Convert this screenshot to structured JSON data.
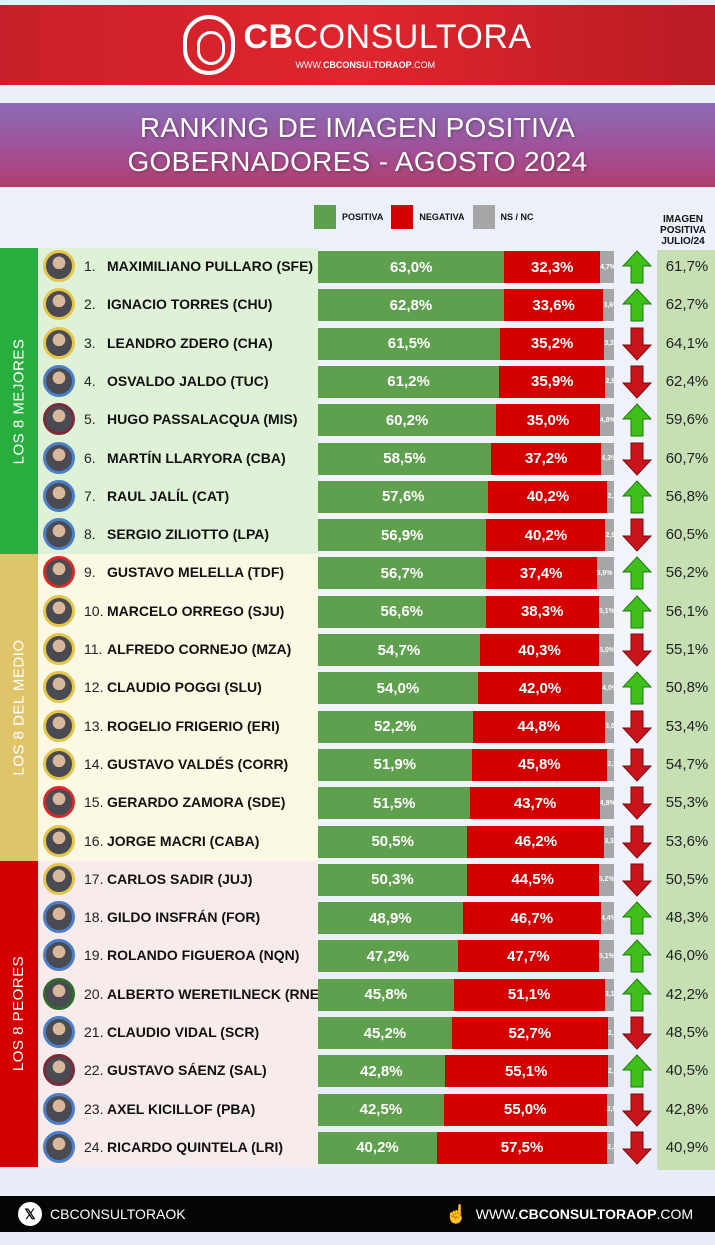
{
  "header": {
    "brand_bold": "CB",
    "brand_light": "CONSULTORA",
    "url_prefix": "WWW.",
    "url_bold": "CBCONSULTORAOP",
    "url_suffix": ".COM"
  },
  "title": {
    "line1": "RANKING DE IMAGEN POSITIVA",
    "line2": "GOBERNADORES - AGOSTO 2024"
  },
  "legend": {
    "positiva": "POSITIVA",
    "negativa": "NEGATIVA",
    "nsnc": "NS / NC"
  },
  "julio_header": {
    "line1": "IMAGEN",
    "line2": "POSITIVA",
    "line3": "JULIO/24"
  },
  "groups": [
    {
      "label": "LOS 8 MEJORES",
      "color": "#27ae3f",
      "bg": "#dff2d8"
    },
    {
      "label": "LOS 8 DEL MEDIO",
      "color": "#dfc46a",
      "bg": "#fbf8e3"
    },
    {
      "label": "LOS 8 PEORES",
      "color": "#d40000",
      "bg": "#f8ebeb"
    }
  ],
  "colors": {
    "positiva": "#5fa04e",
    "negativa": "#d40000",
    "nsnc": "#a6a6a6",
    "arrow_up": "#3fbf1a",
    "arrow_down": "#c8141a",
    "julio_bg": "#c6e0b4"
  },
  "footer": {
    "social_icon": "x-icon",
    "handle": "CBCONSULTORAOK",
    "url_prefix": "WWW.",
    "url_bold": "CBCONSULTORAOP",
    "url_suffix": ".COM"
  },
  "chart_data": {
    "type": "bar",
    "stacked": true,
    "orientation": "horizontal",
    "title": "RANKING DE IMAGEN POSITIVA GOBERNADORES - AGOSTO 2024",
    "legend": [
      "POSITIVA",
      "NEGATIVA",
      "NS / NC"
    ],
    "extra_column": "IMAGEN POSITIVA JULIO/24",
    "rows": [
      {
        "rank": "1.",
        "name": "MAXIMILIANO PULLARO (SFE)",
        "positiva": "63,0%",
        "negativa": "32,3%",
        "nsnc": "4,7%",
        "trend": "up",
        "julio": "61,7%",
        "ring": "#e3c649"
      },
      {
        "rank": "2.",
        "name": "IGNACIO TORRES (CHU)",
        "positiva": "62,8%",
        "negativa": "33,6%",
        "nsnc": "3,6%",
        "trend": "up",
        "julio": "62,7%",
        "ring": "#e3c649"
      },
      {
        "rank": "3.",
        "name": "LEANDRO ZDERO (CHA)",
        "positiva": "61,5%",
        "negativa": "35,2%",
        "nsnc": "3,3%",
        "trend": "down",
        "julio": "64,1%",
        "ring": "#e3c649"
      },
      {
        "rank": "4.",
        "name": "OSVALDO JALDO (TUC)",
        "positiva": "61,2%",
        "negativa": "35,9%",
        "nsnc": "2,9%",
        "trend": "down",
        "julio": "62,4%",
        "ring": "#4a7fc8"
      },
      {
        "rank": "5.",
        "name": "HUGO PASSALACQUA (MIS)",
        "positiva": "60,2%",
        "negativa": "35,0%",
        "nsnc": "4,8%",
        "trend": "up",
        "julio": "59,6%",
        "ring": "#7a2a3a"
      },
      {
        "rank": "6.",
        "name": "MARTÍN LLARYORA (CBA)",
        "positiva": "58,5%",
        "negativa": "37,2%",
        "nsnc": "4,3%",
        "trend": "down",
        "julio": "60,7%",
        "ring": "#4a7fc8"
      },
      {
        "rank": "7.",
        "name": "RAUL JALÍL (CAT)",
        "positiva": "57,6%",
        "negativa": "40,2%",
        "nsnc": "2,2%",
        "trend": "up",
        "julio": "56,8%",
        "ring": "#4a7fc8"
      },
      {
        "rank": "8.",
        "name": "SERGIO ZILIOTTO (LPA)",
        "positiva": "56,9%",
        "negativa": "40,2%",
        "nsnc": "2,9%",
        "trend": "down",
        "julio": "60,5%",
        "ring": "#4a7fc8"
      },
      {
        "rank": "9.",
        "name": "GUSTAVO MELELLA (TDF)",
        "positiva": "56,7%",
        "negativa": "37,4%",
        "nsnc": "5,9%",
        "trend": "up",
        "julio": "56,2%",
        "ring": "#d42a2a"
      },
      {
        "rank": "10.",
        "name": "MARCELO ORREGO (SJU)",
        "positiva": "56,6%",
        "negativa": "38,3%",
        "nsnc": "5,1%",
        "trend": "up",
        "julio": "56,1%",
        "ring": "#e3c649"
      },
      {
        "rank": "11.",
        "name": "ALFREDO CORNEJO (MZA)",
        "positiva": "54,7%",
        "negativa": "40,3%",
        "nsnc": "5,0%",
        "trend": "down",
        "julio": "55,1%",
        "ring": "#e3c649"
      },
      {
        "rank": "12.",
        "name": "CLAUDIO POGGI (SLU)",
        "positiva": "54,0%",
        "negativa": "42,0%",
        "nsnc": "4,0%",
        "trend": "up",
        "julio": "50,8%",
        "ring": "#e3c649"
      },
      {
        "rank": "13.",
        "name": "ROGELIO FRIGERIO (ERI)",
        "positiva": "52,2%",
        "negativa": "44,8%",
        "nsnc": "3,0%",
        "trend": "down",
        "julio": "53,4%",
        "ring": "#e3c649"
      },
      {
        "rank": "14.",
        "name": "GUSTAVO VALDÉS (CORR)",
        "positiva": "51,9%",
        "negativa": "45,8%",
        "nsnc": "2,3%",
        "trend": "down",
        "julio": "54,7%",
        "ring": "#e3c649"
      },
      {
        "rank": "15.",
        "name": "GERARDO ZAMORA (SDE)",
        "positiva": "51,5%",
        "negativa": "43,7%",
        "nsnc": "4,8%",
        "trend": "down",
        "julio": "55,3%",
        "ring": "#d42a2a"
      },
      {
        "rank": "16.",
        "name": "JORGE MACRI (CABA)",
        "positiva": "50,5%",
        "negativa": "46,2%",
        "nsnc": "3,3%",
        "trend": "down",
        "julio": "53,6%",
        "ring": "#e3c649"
      },
      {
        "rank": "17.",
        "name": "CARLOS SADIR (JUJ)",
        "positiva": "50,3%",
        "negativa": "44,5%",
        "nsnc": "5,2%",
        "trend": "down",
        "julio": "50,5%",
        "ring": "#e3c649"
      },
      {
        "rank": "18.",
        "name": "GILDO INSFRÁN (FOR)",
        "positiva": "48,9%",
        "negativa": "46,7%",
        "nsnc": "4,4%",
        "trend": "up",
        "julio": "48,3%",
        "ring": "#4a7fc8"
      },
      {
        "rank": "19.",
        "name": "ROLANDO FIGUEROA (NQN)",
        "positiva": "47,2%",
        "negativa": "47,7%",
        "nsnc": "5,1%",
        "trend": "up",
        "julio": "46,0%",
        "ring": "#4a7fc8"
      },
      {
        "rank": "20.",
        "name": "ALBERTO WERETILNECK (RNE)",
        "positiva": "45,8%",
        "negativa": "51,1%",
        "nsnc": "3,1%",
        "trend": "up",
        "julio": "42,2%",
        "ring": "#2f6b2f"
      },
      {
        "rank": "21.",
        "name": "CLAUDIO VIDAL (SCR)",
        "positiva": "45,2%",
        "negativa": "52,7%",
        "nsnc": "2,1%",
        "trend": "down",
        "julio": "48,5%",
        "ring": "#4a7fc8"
      },
      {
        "rank": "22.",
        "name": "GUSTAVO SÁENZ (SAL)",
        "positiva": "42,8%",
        "negativa": "55,1%",
        "nsnc": "2,1%",
        "trend": "up",
        "julio": "40,5%",
        "ring": "#7a2a3a"
      },
      {
        "rank": "23.",
        "name": "AXEL KICILLOF (PBA)",
        "positiva": "42,5%",
        "negativa": "55,0%",
        "nsnc": "2,5%",
        "trend": "down",
        "julio": "42,8%",
        "ring": "#4a7fc8"
      },
      {
        "rank": "24.",
        "name": "RICARDO QUINTELA (LRI)",
        "positiva": "40,2%",
        "negativa": "57,5%",
        "nsnc": "2,3%",
        "trend": "down",
        "julio": "40,9%",
        "ring": "#4a7fc8"
      }
    ]
  }
}
